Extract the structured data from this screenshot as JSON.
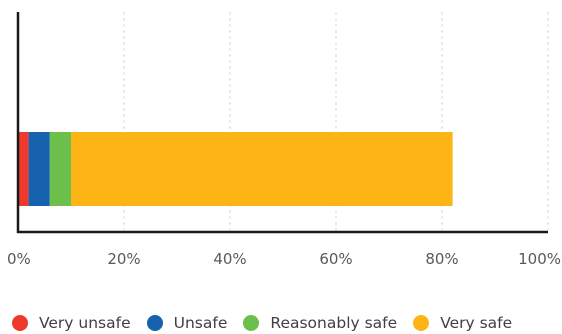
{
  "chart_data": {
    "type": "bar",
    "orientation": "horizontal",
    "stacked": true,
    "categories": [
      ""
    ],
    "series": [
      {
        "name": "Very unsafe",
        "values": [
          2
        ],
        "color": "#ee3a2c"
      },
      {
        "name": "Unsafe",
        "values": [
          4
        ],
        "color": "#1662ae"
      },
      {
        "name": "Reasonably safe",
        "values": [
          4
        ],
        "color": "#6cbf4b"
      },
      {
        "name": "Very safe",
        "values": [
          72
        ],
        "color": "#fcb515"
      }
    ],
    "x_ticks": [
      "0%",
      "20%",
      "40%",
      "60%",
      "80%",
      "100%"
    ],
    "xlim": [
      0,
      100
    ],
    "grid": "vertical dashed",
    "legend_position": "bottom"
  }
}
